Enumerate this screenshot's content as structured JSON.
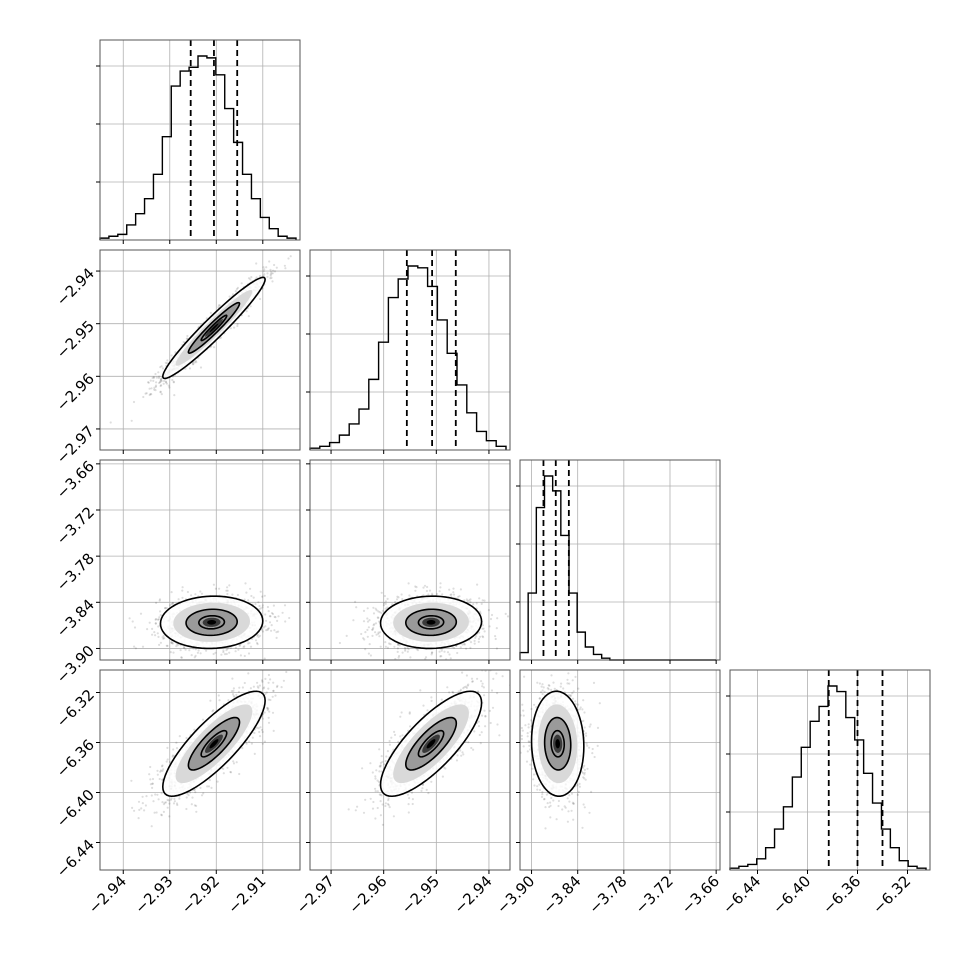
{
  "chart_data": {
    "type": "corner",
    "parameters": 4,
    "quantiles": [
      0.16,
      0.5,
      0.84
    ],
    "grid": true,
    "title": "",
    "params": [
      {
        "range": [
          -2.945,
          -2.902
        ],
        "ticks": [
          -2.94,
          -2.93,
          -2.92,
          -2.91
        ],
        "tick_labels": [
          "−2.94",
          "−2.93",
          "−2.92",
          "−2.91"
        ],
        "quantile_values": [
          -2.9255,
          -2.9205,
          -2.9155
        ],
        "hist_counts": [
          1,
          2,
          3,
          8,
          14,
          22,
          35,
          55,
          82,
          90,
          92,
          98,
          97,
          88,
          70,
          52,
          35,
          22,
          12,
          6,
          2,
          1
        ]
      },
      {
        "range": [
          -2.974,
          -2.936
        ],
        "ticks": [
          -2.97,
          -2.96,
          -2.95,
          -2.94
        ],
        "tick_labels": [
          "−2.97",
          "−2.96",
          "−2.95",
          "−2.94"
        ],
        "quantile_values": [
          -2.9556,
          -2.9508,
          -2.9463
        ],
        "hist_counts": [
          1,
          2,
          4,
          8,
          14,
          22,
          38,
          58,
          82,
          92,
          99,
          98,
          88,
          70,
          52,
          35,
          20,
          10,
          5,
          2
        ]
      },
      {
        "range": [
          -3.915,
          -3.655
        ],
        "ticks": [
          -3.9,
          -3.84,
          -3.78,
          -3.72,
          -3.66
        ],
        "tick_labels": [
          "−3.90",
          "−3.84",
          "−3.78",
          "−3.72",
          "−3.66"
        ],
        "quantile_values": [
          -3.8845,
          -3.8685,
          -3.8515
        ],
        "hist_counts": [
          4,
          36,
          82,
          99,
          91,
          67,
          36,
          15,
          7,
          3,
          1,
          0,
          0,
          0,
          0,
          0,
          0,
          0,
          0,
          0,
          0,
          0,
          0,
          0
        ]
      },
      {
        "range": [
          -6.462,
          -6.302
        ],
        "ticks": [
          -6.44,
          -6.4,
          -6.36,
          -6.32
        ],
        "tick_labels": [
          "−6.44",
          "−6.40",
          "−6.36",
          "−6.32"
        ],
        "quantile_values": [
          -6.383,
          -6.36,
          -6.34
        ],
        "hist_counts": [
          1,
          2,
          3,
          6,
          12,
          22,
          34,
          50,
          66,
          80,
          88,
          99,
          96,
          82,
          70,
          52,
          36,
          22,
          12,
          5,
          2,
          1
        ]
      }
    ],
    "pairs": [
      {
        "x": 0,
        "y": 1,
        "mean": [
          -2.9205,
          -2.9508
        ],
        "sd": [
          0.0055,
          0.0048
        ],
        "rho": 0.96
      },
      {
        "x": 0,
        "y": 2,
        "mean": [
          -2.921,
          -3.866
        ],
        "sd": [
          0.0055,
          0.017
        ],
        "rho": 0.05
      },
      {
        "x": 1,
        "y": 2,
        "mean": [
          -2.951,
          -3.866
        ],
        "sd": [
          0.0048,
          0.017
        ],
        "rho": 0.03
      },
      {
        "x": 0,
        "y": 3,
        "mean": [
          -2.9205,
          -6.361
        ],
        "sd": [
          0.0055,
          0.021
        ],
        "rho": 0.82
      },
      {
        "x": 1,
        "y": 3,
        "mean": [
          -2.951,
          -6.361
        ],
        "sd": [
          0.0048,
          0.021
        ],
        "rho": 0.78
      },
      {
        "x": 2,
        "y": 3,
        "mean": [
          -3.866,
          -6.361
        ],
        "sd": [
          0.017,
          0.021
        ],
        "rho": -0.05
      }
    ],
    "contour_levels_sigma": [
      0.5,
      1.0,
      1.5,
      2.0
    ]
  }
}
